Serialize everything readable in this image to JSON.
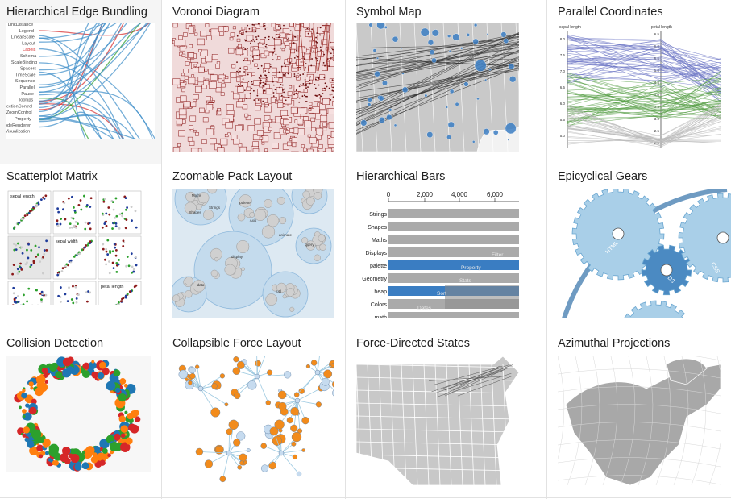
{
  "gallery": {
    "items": [
      {
        "title": "Hierarchical Edge Bundling",
        "icon": "edge-bundling-thumbnail"
      },
      {
        "title": "Voronoi Diagram",
        "icon": "voronoi-thumbnail"
      },
      {
        "title": "Symbol Map",
        "icon": "symbol-map-thumbnail"
      },
      {
        "title": "Parallel Coordinates",
        "icon": "parallel-coordinates-thumbnail"
      },
      {
        "title": "Scatterplot Matrix",
        "icon": "scatterplot-matrix-thumbnail"
      },
      {
        "title": "Zoomable Pack Layout",
        "icon": "pack-layout-thumbnail"
      },
      {
        "title": "Hierarchical Bars",
        "icon": "hierarchical-bars-thumbnail"
      },
      {
        "title": "Epicyclical Gears",
        "icon": "gears-thumbnail"
      },
      {
        "title": "Collision Detection",
        "icon": "collision-thumbnail"
      },
      {
        "title": "Collapsible Force Layout",
        "icon": "force-layout-thumbnail"
      },
      {
        "title": "Force-Directed States",
        "icon": "states-thumbnail"
      },
      {
        "title": "Azimuthal Projections",
        "icon": "projection-thumbnail"
      }
    ]
  },
  "thumbs": {
    "bundling_labels": [
      "LinkDistance",
      "Legend",
      "LinearScale",
      "Layout",
      "Labels",
      "Schema",
      "ScaleBinding",
      "Spacers",
      "TimeScale",
      "Sequence",
      "Parallel",
      "Pause",
      "Tooltips",
      "SelectionControl",
      "PanZoomControl",
      "Property",
      "NodeRenderer",
      "Visualization"
    ],
    "scatter": {
      "labels": [
        "sepal length",
        "sepal width",
        "petal length"
      ]
    },
    "pack": {
      "labels": [
        "Maths",
        "Shapes",
        "Strings",
        "palette",
        "Axis",
        "data",
        "display",
        "animate",
        "query",
        "util"
      ]
    },
    "bars": {
      "axis_ticks": [
        "0",
        "2,000",
        "4,000",
        "6,000"
      ],
      "labels": [
        "Strings",
        "Shapes",
        "Maths",
        "Displays",
        "palette",
        "Geometry",
        "heap",
        "Colors",
        "math"
      ],
      "overlay_labels": [
        "Property",
        "Sort",
        "Dates",
        "Filter",
        "Stats"
      ]
    },
    "gears": {
      "labels": [
        "HTML",
        "D3",
        "CSS"
      ]
    },
    "parallel": {
      "axis_labels": [
        "sepal length",
        "petal length"
      ],
      "ticks": [
        "8.0",
        "7.5",
        "7.0",
        "6.5",
        "6.0",
        "5.5",
        "5.0"
      ],
      "ticks2": [
        "6.5",
        "6.0",
        "5.5",
        "5.0",
        "4.5",
        "4.0",
        "3.5",
        "3.0",
        "2.5",
        "2.0"
      ]
    }
  }
}
